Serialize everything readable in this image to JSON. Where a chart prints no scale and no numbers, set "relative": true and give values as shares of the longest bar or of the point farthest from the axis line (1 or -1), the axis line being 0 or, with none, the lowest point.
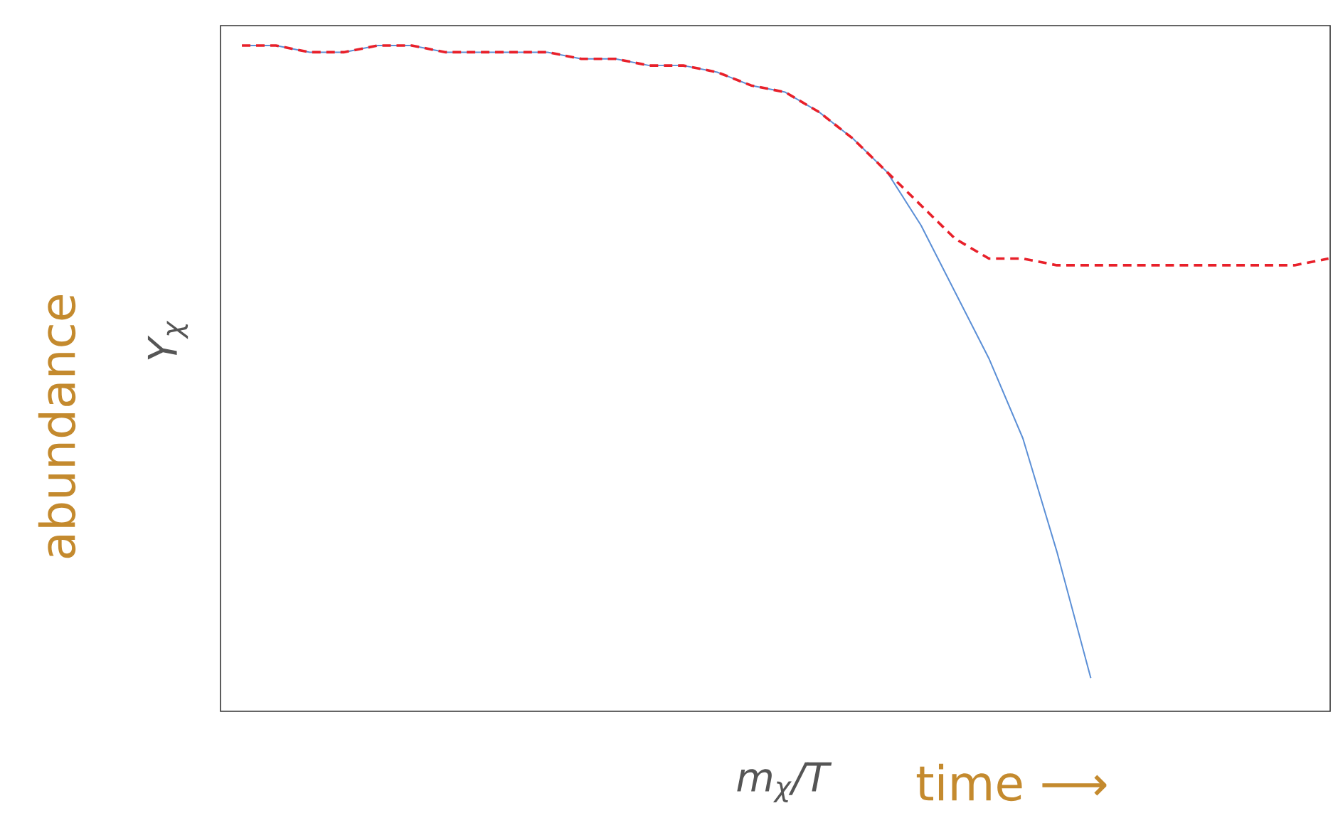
{
  "chart_data": {
    "type": "line",
    "relative": true,
    "ylabel": "abundance",
    "xlabel": "time ⟶",
    "annotations": [
      "Y$_{χ}$",
      "m$_{χ}$/T"
    ],
    "categories": [
      null,
      null,
      null,
      null,
      null,
      null,
      null,
      null,
      null,
      null,
      null,
      null,
      null,
      null,
      null,
      null,
      null,
      null,
      null,
      null,
      null,
      null,
      null,
      null,
      null,
      null,
      null,
      null,
      null,
      null,
      null,
      null,
      null
    ],
    "series": [
      {
        "color": "#5b8fd6",
        "line_style": "solid",
        "values": [
          1.0,
          1.0,
          0.99,
          0.99,
          1.0,
          1.0,
          0.99,
          0.99,
          0.99,
          0.99,
          0.98,
          0.98,
          0.97,
          0.97,
          0.96,
          0.94,
          0.93,
          0.9,
          0.86,
          0.81,
          0.73,
          0.63,
          0.53,
          0.41,
          0.24,
          0.05,
          null,
          null,
          null,
          null,
          null,
          null,
          null
        ]
      },
      {
        "color": "#e8202a",
        "line_style": "dashed",
        "values": [
          1.0,
          1.0,
          0.99,
          0.99,
          1.0,
          1.0,
          0.99,
          0.99,
          0.99,
          0.99,
          0.98,
          0.98,
          0.97,
          0.97,
          0.96,
          0.94,
          0.93,
          0.9,
          0.86,
          0.81,
          0.76,
          0.71,
          0.68,
          0.68,
          0.67,
          0.67,
          0.67,
          0.67,
          0.67,
          0.67,
          0.67,
          0.67,
          0.68
        ]
      }
    ]
  }
}
